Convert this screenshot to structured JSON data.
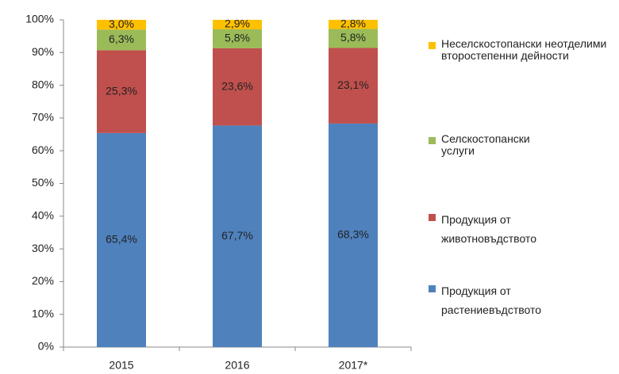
{
  "chart_data": {
    "type": "stacked_bar",
    "categories": [
      "2015",
      "2016",
      "2017*"
    ],
    "series": [
      {
        "name": "Продукция от растениевъдството",
        "color": "#4f81bd",
        "values": [
          65.4,
          67.7,
          68.3
        ],
        "value_labels": [
          "65,4%",
          "67,7%",
          "68,3%"
        ]
      },
      {
        "name": "Продукция от животновъдството",
        "color": "#c0504d",
        "values": [
          25.3,
          23.6,
          23.1
        ],
        "value_labels": [
          "25,3%",
          "23,6%",
          "23,1%"
        ]
      },
      {
        "name": "Селскостопански услуги",
        "color": "#9bbb59",
        "values": [
          6.3,
          5.8,
          5.8
        ],
        "value_labels": [
          "6,3%",
          "5,8%",
          "5,8%"
        ]
      },
      {
        "name": "Неселскостопански неотделими второстепенни дейности",
        "color": "#ffc000",
        "values": [
          3.0,
          2.9,
          2.8
        ],
        "value_labels": [
          "3,0%",
          "2,9%",
          "2,8%"
        ]
      }
    ],
    "ylim": [
      0,
      100
    ],
    "yticks": [
      {
        "value": 0,
        "label": "0%"
      },
      {
        "value": 10,
        "label": "10%"
      },
      {
        "value": 20,
        "label": "20%"
      },
      {
        "value": 30,
        "label": "30%"
      },
      {
        "value": 40,
        "label": "40%"
      },
      {
        "value": 50,
        "label": "50%"
      },
      {
        "value": 60,
        "label": "60%"
      },
      {
        "value": 70,
        "label": "70%"
      },
      {
        "value": 80,
        "label": "80%"
      },
      {
        "value": 90,
        "label": "90%"
      },
      {
        "value": 100,
        "label": "100%"
      }
    ],
    "grid": false
  }
}
